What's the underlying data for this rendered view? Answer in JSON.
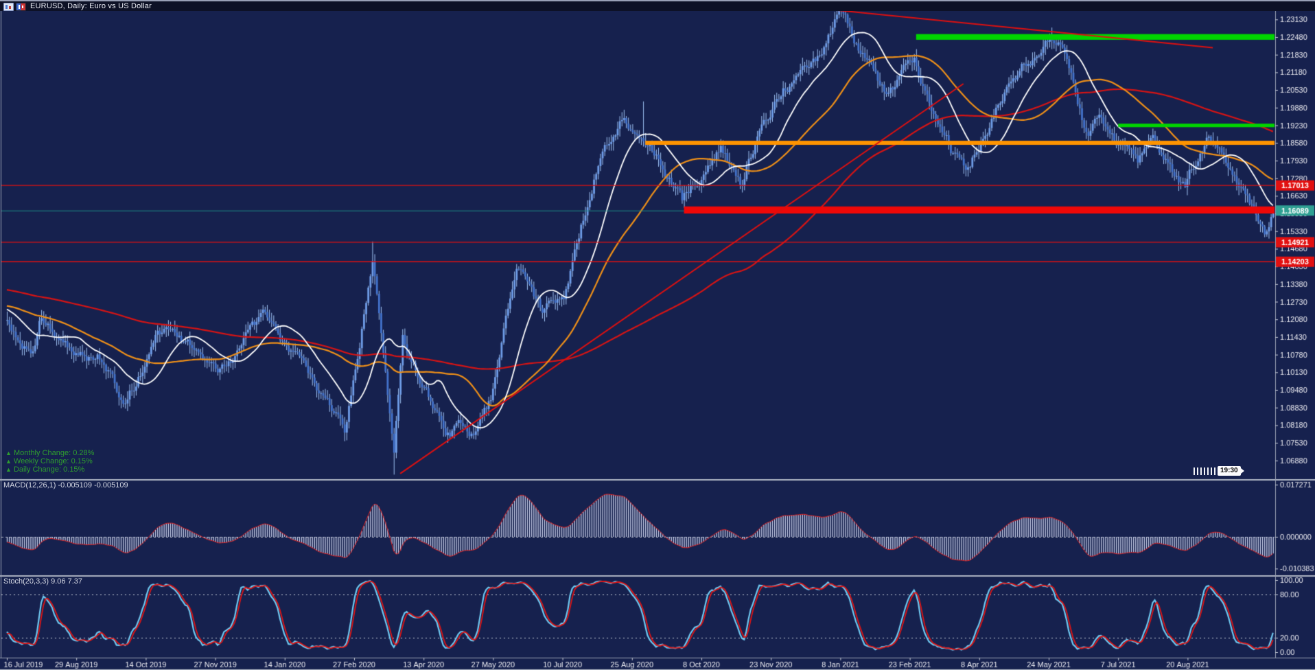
{
  "window": {
    "title": "EURUSD, Daily:  Euro vs US Dollar",
    "icons": [
      "chart-window-icon",
      "symbol-pair-icon"
    ]
  },
  "overlays": {
    "changes": [
      {
        "arrow": "▲",
        "label": "Monthly Change:",
        "value": "0.28%"
      },
      {
        "arrow": "▲",
        "label": "Weekly Change:",
        "value": "0.15%"
      },
      {
        "arrow": "▲",
        "label": "Daily Change:",
        "value": "0.15%"
      }
    ],
    "countdown": "19:30",
    "top_marker": "▼"
  },
  "indicators": {
    "macd": {
      "name": "MACD(12,26,1)",
      "value1": "-0.005109",
      "value2": "-0.005109",
      "axis_ticks": [
        "0.017271",
        "0.000000",
        "-0.010383"
      ],
      "histogram_color": "#c6cde8",
      "signal_color": "#e02020"
    },
    "stoch": {
      "name": "Stoch(20,3,3)",
      "value1": "9.06",
      "value2": "7.37",
      "axis_ticks": [
        "100.00",
        "80.00",
        "20.00",
        "0.00"
      ],
      "dashed_levels": [
        80,
        20
      ],
      "k_color": "#6fc8f0",
      "d_color": "#e01414"
    }
  },
  "axes": {
    "price_ticks": [
      "1.23130",
      "1.22480",
      "1.21830",
      "1.21180",
      "1.20530",
      "1.19880",
      "1.19230",
      "1.18580",
      "1.17930",
      "1.17280",
      "1.16630",
      "1.15980",
      "1.15330",
      "1.14680",
      "1.14030",
      "1.13380",
      "1.12730",
      "1.12080",
      "1.11430",
      "1.10780",
      "1.10130",
      "1.09480",
      "1.08830",
      "1.08180",
      "1.07530",
      "1.06880"
    ],
    "dates": [
      "16 Jul 2019",
      "29 Aug 2019",
      "14 Oct 2019",
      "27 Nov 2019",
      "14 Jan 2020",
      "27 Feb 2020",
      "13 Apr 2020",
      "27 May 2020",
      "10 Jul 2020",
      "25 Aug 2020",
      "8 Oct 2020",
      "23 Nov 2020",
      "8 Jan 2021",
      "23 Feb 2021",
      "8 Apr 2021",
      "24 May 2021",
      "7 Jul 2021",
      "20 Aug 2021"
    ]
  },
  "price_badges": [
    {
      "text": "1.17013",
      "price": 1.17013,
      "bg": "#e21010"
    },
    {
      "text": "1.14921",
      "price": 1.14921,
      "bg": "#e21010"
    },
    {
      "text": "1.14203",
      "price": 1.14203,
      "bg": "#e21010"
    },
    {
      "text": "1.16089",
      "price": 1.16089,
      "bg": "#2fa093"
    }
  ],
  "chart_data": {
    "type": "candlestick",
    "symbol": "EURUSD",
    "timeframe": "Daily",
    "bars_visible": 590,
    "current_price": 1.16089,
    "price_keypoints": [
      [
        0,
        1.121
      ],
      [
        12,
        1.1085
      ],
      [
        15,
        1.12
      ],
      [
        30,
        1.11
      ],
      [
        44,
        1.107
      ],
      [
        47,
        1.1035
      ],
      [
        55,
        1.0895
      ],
      [
        70,
        1.115
      ],
      [
        78,
        1.115
      ],
      [
        98,
        1.102
      ],
      [
        120,
        1.121
      ],
      [
        141,
        1.101
      ],
      [
        157,
        1.079
      ],
      [
        170,
        1.145
      ],
      [
        180,
        1.072
      ],
      [
        184,
        1.114
      ],
      [
        204,
        1.082
      ],
      [
        218,
        1.08
      ],
      [
        225,
        1.09
      ],
      [
        237,
        1.137
      ],
      [
        249,
        1.122
      ],
      [
        259,
        1.13
      ],
      [
        274,
        1.178
      ],
      [
        286,
        1.193
      ],
      [
        296,
        1.191
      ],
      [
        314,
        1.163
      ],
      [
        332,
        1.186
      ],
      [
        342,
        1.172
      ],
      [
        345,
        1.181
      ],
      [
        361,
        1.207
      ],
      [
        377,
        1.216
      ],
      [
        387,
        1.233
      ],
      [
        408,
        1.204
      ],
      [
        422,
        1.217
      ],
      [
        433,
        1.195
      ],
      [
        446,
        1.173
      ],
      [
        467,
        1.212
      ],
      [
        485,
        1.225
      ],
      [
        490,
        1.222
      ],
      [
        503,
        1.186
      ],
      [
        508,
        1.194
      ],
      [
        526,
        1.179
      ],
      [
        533,
        1.187
      ],
      [
        548,
        1.17
      ],
      [
        558,
        1.188
      ],
      [
        565,
        1.181
      ],
      [
        572,
        1.174
      ],
      [
        582,
        1.156
      ],
      [
        585,
        1.153
      ],
      [
        589,
        1.16089
      ]
    ],
    "pre_keypoints": [
      [
        -170,
        1.145
      ],
      [
        -130,
        1.138
      ],
      [
        -90,
        1.13
      ],
      [
        -50,
        1.122
      ],
      [
        -20,
        1.128
      ]
    ],
    "wick_spikes": [
      [
        55,
        1.0879
      ],
      [
        170,
        1.1495
      ],
      [
        180,
        1.0636
      ],
      [
        296,
        1.2011
      ],
      [
        387,
        1.2349
      ],
      [
        585,
        1.1525
      ]
    ],
    "moving_averages": [
      {
        "period": 20,
        "color": "#ffffff"
      },
      {
        "period": 50,
        "color": "#ef9018"
      },
      {
        "period": 170,
        "color": "#d61414"
      }
    ],
    "h_lines": [
      {
        "price": 1.17013,
        "color": "#e21010"
      },
      {
        "price": 1.14921,
        "color": "#e21010"
      },
      {
        "price": 1.14203,
        "color": "#e21010"
      }
    ],
    "current_price_line": {
      "price": 1.16089,
      "color": "#1e8c86"
    },
    "zones": [
      {
        "top": 1.2259,
        "bottom": 1.2238,
        "from_bar": 423,
        "color": "#00d400"
      },
      {
        "top": 1.1929,
        "bottom": 1.1916,
        "from_bar": 517,
        "color": "#00d400"
      },
      {
        "top": 1.1866,
        "bottom": 1.1851,
        "from_bar": 297,
        "color": "#ff9400"
      },
      {
        "top": 1.1624,
        "bottom": 1.1598,
        "from_bar": 315,
        "color": "#ee0808"
      }
    ],
    "trendlines": [
      {
        "from": [
          386,
          1.2347
        ],
        "to": [
          561,
          1.2209
        ],
        "color": "#dd1010"
      },
      {
        "from": [
          183,
          1.064
        ],
        "to": [
          445,
          1.2076
        ],
        "color": "#dd1010"
      }
    ],
    "candle_colors": {
      "up_body": "#6f9de8",
      "down_body": "#4373cc",
      "wick": "#a0c4f4"
    }
  },
  "colors": {
    "background": "#16214e",
    "titlebar": "#0d1126",
    "divider": "#b0b6c4",
    "axis_text": "#ececf2",
    "axis_line": "#9aa1b4"
  }
}
